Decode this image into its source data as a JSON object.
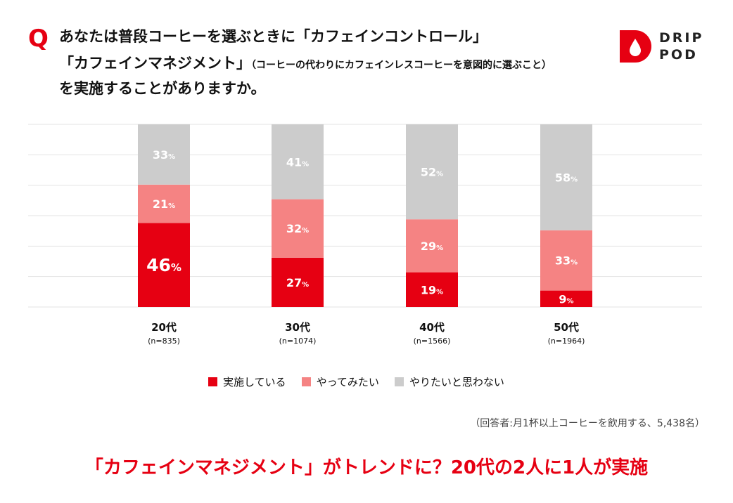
{
  "question": {
    "mark": "Q",
    "line1": "あなたは普段コーヒーを選ぶときに「カフェインコントロール」",
    "line2_main": "「カフェインマネジメント」",
    "line2_sub": "（コーヒーの代わりにカフェインレスコーヒーを意図的に選ぶこと）",
    "line3": "を実施することがありますか。"
  },
  "logo": {
    "line1": "DRIP",
    "line2": "POD",
    "color": "#e60012"
  },
  "chart_data": {
    "type": "bar",
    "stacked": true,
    "categories": [
      "20代",
      "30代",
      "40代",
      "50代"
    ],
    "sample_sizes": [
      "(n=835)",
      "(n=1074)",
      "(n=1566)",
      "(n=1964)"
    ],
    "series": [
      {
        "name": "実施している",
        "color": "#e60012",
        "values": [
          46,
          27,
          19,
          9
        ]
      },
      {
        "name": "やってみたい",
        "color": "#f58383",
        "values": [
          21,
          32,
          29,
          33
        ]
      },
      {
        "name": "やりたいと思わない",
        "color": "#cccccc",
        "values": [
          33,
          41,
          52,
          58
        ]
      }
    ],
    "value_suffix": "%",
    "ylim": [
      0,
      100
    ],
    "grid": true,
    "legend": "bottom"
  },
  "note": "（回答者:月1杯以上コーヒーを飲用する、5,438名）",
  "headline": "「カフェインマネジメント」がトレンドに？20代の2人に1人が実施"
}
